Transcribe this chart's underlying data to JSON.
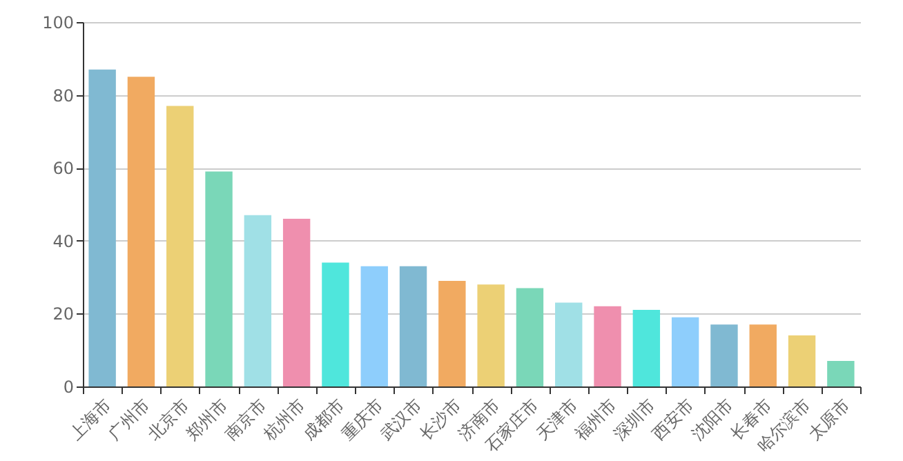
{
  "chart_data": {
    "type": "bar",
    "categories": [
      "上海市",
      "广州市",
      "北京市",
      "郑州市",
      "南京市",
      "杭州市",
      "成都市",
      "重庆市",
      "武汉市",
      "长沙市",
      "济南市",
      "石家庄市",
      "天津市",
      "福州市",
      "深圳市",
      "西安市",
      "沈阳市",
      "长春市",
      "哈尔滨市",
      "太原市"
    ],
    "values": [
      87,
      85,
      77,
      59,
      47,
      46,
      34,
      33,
      33,
      29,
      28,
      27,
      23,
      22,
      21,
      19,
      17,
      17,
      14,
      7
    ],
    "colors": [
      "#80b9d2",
      "#f1aa61",
      "#ecd075",
      "#7ad7b8",
      "#a0e0e6",
      "#ef8fae",
      "#4fe6dc",
      "#8ecefc",
      "#80b9d2",
      "#f1aa61",
      "#ecd075",
      "#7ad7b8",
      "#a0e0e6",
      "#ef8fae",
      "#4fe6dc",
      "#8ecefc",
      "#80b9d2",
      "#f1aa61",
      "#ecd075",
      "#7ad7b8"
    ],
    "ylim": [
      0,
      100
    ],
    "yticks": [
      0,
      20,
      40,
      60,
      80,
      100
    ],
    "grid": "y"
  }
}
